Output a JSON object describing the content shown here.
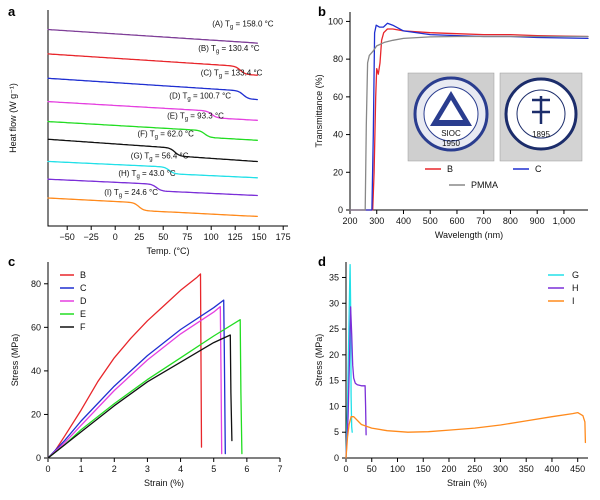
{
  "chart_data": [
    {
      "panel": "a",
      "type": "line",
      "xlabel": "Temp. (°C)",
      "ylabel": "Heat flow (W g⁻¹)",
      "xlim": [
        -70,
        180
      ],
      "xticks": [
        -50,
        -25,
        0,
        25,
        50,
        75,
        100,
        125,
        150,
        175
      ],
      "series": [
        {
          "id": "A",
          "label": "(A) T",
          "label_sub": "g",
          "label_value": " = 158.0 °C",
          "color": "#7f3f98",
          "offset": 8.5,
          "slope": -0.0028,
          "tg": 158.0,
          "step": 0.35
        },
        {
          "id": "B",
          "label": "(B) T",
          "label_sub": "g",
          "label_value": " = 130.4 °C",
          "color": "#e8262b",
          "offset": 7.4,
          "slope": -0.0028,
          "tg": 130.4,
          "step": 0.35
        },
        {
          "id": "C",
          "label": "(C) T",
          "label_sub": "g",
          "label_value": " = 133.4 °C",
          "color": "#1f2fd1",
          "offset": 6.3,
          "slope": -0.0028,
          "tg": 133.4,
          "step": 0.35
        },
        {
          "id": "D",
          "label": "(D) T",
          "label_sub": "g",
          "label_value": " = 100.7 °C",
          "color": "#e53fe0",
          "offset": 5.25,
          "slope": -0.0025,
          "tg": 100.7,
          "step": 0.3
        },
        {
          "id": "E",
          "label": "(E) T",
          "label_sub": "g",
          "label_value": " = 93.3 °C",
          "color": "#22dd22",
          "offset": 4.35,
          "slope": -0.0025,
          "tg": 93.3,
          "step": 0.3
        },
        {
          "id": "F",
          "label": "(F) T",
          "label_sub": "g",
          "label_value": " = 62.0 °C",
          "color": "#111111",
          "offset": 3.55,
          "slope": -0.003,
          "tg": 62.0,
          "step": 0.35
        },
        {
          "id": "G",
          "label": "(G) T",
          "label_sub": "g",
          "label_value": " = 56.4 °C",
          "color": "#22e0e8",
          "offset": 2.55,
          "slope": -0.002,
          "tg": 56.4,
          "step": 0.3
        },
        {
          "id": "H",
          "label": "(H) T",
          "label_sub": "g",
          "label_value": " = 43.0 °C",
          "color": "#7b2fd8",
          "offset": 1.75,
          "slope": -0.002,
          "tg": 43.0,
          "step": 0.3
        },
        {
          "id": "I",
          "label": "(I) T",
          "label_sub": "g",
          "label_value": " = 24.6 °C",
          "color": "#ff8a1c",
          "offset": 0.9,
          "slope": -0.0022,
          "tg": 24.6,
          "step": 0.35
        }
      ]
    },
    {
      "panel": "b",
      "type": "line",
      "xlabel": "Wavelength (nm)",
      "ylabel": "Transmittance (%)",
      "xlim": [
        200,
        1090
      ],
      "ylim": [
        0,
        105
      ],
      "xticks": [
        200,
        300,
        400,
        500,
        600,
        700,
        800,
        900,
        1000
      ],
      "xtick_labels": [
        "200",
        "300",
        "400",
        "500",
        "600",
        "700",
        "800",
        "900",
        "1,000"
      ],
      "yticks": [
        0,
        20,
        40,
        60,
        80,
        100
      ],
      "series": [
        {
          "name": "B",
          "color": "#e8262b",
          "points": [
            [
              200,
              0
            ],
            [
              285,
              0
            ],
            [
              290,
              20
            ],
            [
              296,
              60
            ],
            [
              300,
              75
            ],
            [
              306,
              72
            ],
            [
              312,
              78
            ],
            [
              318,
              90
            ],
            [
              326,
              94
            ],
            [
              340,
              96
            ],
            [
              360,
              96
            ],
            [
              400,
              95
            ],
            [
              500,
              94
            ],
            [
              600,
              93.5
            ],
            [
              700,
              93
            ],
            [
              800,
              93
            ],
            [
              900,
              92.5
            ],
            [
              1090,
              92
            ]
          ]
        },
        {
          "name": "C",
          "color": "#1f2fd1",
          "points": [
            [
              200,
              0
            ],
            [
              282,
              0
            ],
            [
              287,
              40
            ],
            [
              292,
              94
            ],
            [
              298,
              98
            ],
            [
              310,
              97
            ],
            [
              325,
              97
            ],
            [
              340,
              99
            ],
            [
              360,
              98
            ],
            [
              400,
              95
            ],
            [
              500,
              93
            ],
            [
              600,
              92.5
            ],
            [
              700,
              92
            ],
            [
              800,
              92
            ],
            [
              900,
              91.5
            ],
            [
              1090,
              91
            ]
          ]
        },
        {
          "name": "PMMA",
          "color": "#888888",
          "points": [
            [
              200,
              0
            ],
            [
              257,
              0
            ],
            [
              261,
              45
            ],
            [
              266,
              78
            ],
            [
              272,
              82
            ],
            [
              285,
              84
            ],
            [
              300,
              87
            ],
            [
              330,
              89
            ],
            [
              360,
              90
            ],
            [
              400,
              91
            ],
            [
              500,
              91.8
            ],
            [
              600,
              92
            ],
            [
              700,
              92
            ],
            [
              800,
              92
            ],
            [
              900,
              92
            ],
            [
              1090,
              92
            ]
          ]
        }
      ],
      "legend": [
        "B",
        "C",
        "PMMA"
      ],
      "inset": {
        "left_logo_text": "SIOC",
        "left_logo_year": "1950",
        "right_logo_year": "1895"
      }
    },
    {
      "panel": "c",
      "type": "line",
      "xlabel": "Strain (%)",
      "ylabel": "Stress (MPa)",
      "xlim": [
        0,
        7
      ],
      "ylim": [
        0,
        90
      ],
      "xticks": [
        0,
        1,
        2,
        3,
        4,
        5,
        6,
        7
      ],
      "yticks": [
        0,
        20,
        40,
        60,
        80
      ],
      "legend_position": "top-left",
      "series": [
        {
          "name": "B",
          "color": "#e8262b",
          "points": [
            [
              0,
              0
            ],
            [
              0.2,
              3
            ],
            [
              0.5,
              10
            ],
            [
              1,
              22
            ],
            [
              1.5,
              35
            ],
            [
              2,
              46
            ],
            [
              2.5,
              55
            ],
            [
              3,
              63
            ],
            [
              3.5,
              70
            ],
            [
              4,
              77
            ],
            [
              4.5,
              83
            ],
            [
              4.6,
              84.5
            ],
            [
              4.61,
              60
            ],
            [
              4.63,
              5
            ]
          ]
        },
        {
          "name": "C",
          "color": "#1f2fd1",
          "points": [
            [
              0,
              0
            ],
            [
              0.5,
              8
            ],
            [
              1,
              17
            ],
            [
              2,
              33
            ],
            [
              3,
              47
            ],
            [
              4,
              59
            ],
            [
              5,
              69
            ],
            [
              5.3,
              72.5
            ],
            [
              5.32,
              50
            ],
            [
              5.35,
              2
            ]
          ]
        },
        {
          "name": "D",
          "color": "#e53fe0",
          "points": [
            [
              0,
              0
            ],
            [
              0.5,
              7
            ],
            [
              1,
              15
            ],
            [
              2,
              31
            ],
            [
              3,
              45
            ],
            [
              4,
              57
            ],
            [
              5,
              67
            ],
            [
              5.2,
              69.5
            ],
            [
              5.22,
              40
            ],
            [
              5.24,
              2
            ]
          ]
        },
        {
          "name": "E",
          "color": "#22dd22",
          "points": [
            [
              0,
              0
            ],
            [
              0.5,
              6
            ],
            [
              1,
              13
            ],
            [
              2,
              25
            ],
            [
              3,
              36
            ],
            [
              4,
              46
            ],
            [
              5,
              56
            ],
            [
              5.8,
              63.5
            ],
            [
              5.82,
              30
            ],
            [
              5.85,
              2
            ]
          ]
        },
        {
          "name": "F",
          "color": "#111111",
          "points": [
            [
              0,
              0
            ],
            [
              0.5,
              6
            ],
            [
              1,
              12
            ],
            [
              2,
              24
            ],
            [
              3,
              35
            ],
            [
              4,
              44
            ],
            [
              5,
              53
            ],
            [
              5.5,
              56.5
            ],
            [
              5.52,
              30
            ],
            [
              5.55,
              8
            ]
          ]
        }
      ]
    },
    {
      "panel": "d",
      "type": "line",
      "xlabel": "Strain (%)",
      "ylabel": "Stress (MPa)",
      "xlim": [
        0,
        470
      ],
      "ylim": [
        0,
        38
      ],
      "xticks": [
        0,
        50,
        100,
        150,
        200,
        250,
        300,
        350,
        400,
        450
      ],
      "yticks": [
        0,
        5,
        10,
        15,
        20,
        25,
        30,
        35
      ],
      "legend_position": "top-right",
      "series": [
        {
          "name": "G",
          "color": "#22e0e8",
          "points": [
            [
              0,
              0
            ],
            [
              3,
              10
            ],
            [
              5,
              22
            ],
            [
              7,
              33
            ],
            [
              8,
              37.5
            ],
            [
              9,
              30
            ],
            [
              10,
              12
            ],
            [
              11,
              6
            ],
            [
              12,
              5
            ]
          ]
        },
        {
          "name": "H",
          "color": "#7b2fd8",
          "points": [
            [
              0,
              0
            ],
            [
              4,
              8
            ],
            [
              7,
              20
            ],
            [
              9,
              29.3
            ],
            [
              11,
              24
            ],
            [
              13,
              18
            ],
            [
              15,
              15.5
            ],
            [
              18,
              14.5
            ],
            [
              22,
              14.2
            ],
            [
              30,
              14
            ],
            [
              37,
              14
            ],
            [
              38,
              10
            ],
            [
              39,
              4.5
            ]
          ]
        },
        {
          "name": "I",
          "color": "#ff8a1c",
          "points": [
            [
              0,
              0
            ],
            [
              3,
              4
            ],
            [
              6,
              6.5
            ],
            [
              10,
              8
            ],
            [
              15,
              8
            ],
            [
              30,
              6.5
            ],
            [
              50,
              5.8
            ],
            [
              80,
              5.3
            ],
            [
              120,
              5
            ],
            [
              160,
              5.1
            ],
            [
              200,
              5.4
            ],
            [
              250,
              5.8
            ],
            [
              300,
              6.4
            ],
            [
              350,
              7.2
            ],
            [
              400,
              8
            ],
            [
              440,
              8.6
            ],
            [
              450,
              8.8
            ],
            [
              460,
              8.2
            ],
            [
              464,
              7
            ],
            [
              465,
              3
            ]
          ]
        }
      ]
    }
  ]
}
